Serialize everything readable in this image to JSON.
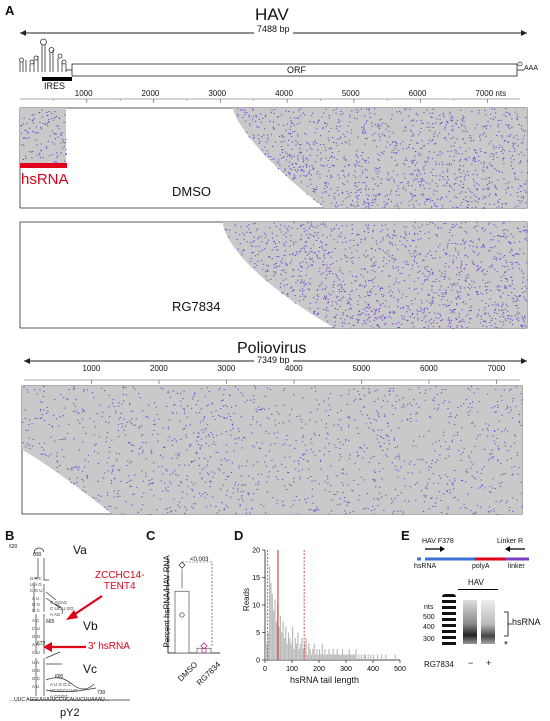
{
  "panel_a": {
    "letter": "A",
    "hav": {
      "title": "HAV",
      "length": "7488 bp",
      "ires": "IRES",
      "orf": "ORF",
      "polya": "AAA",
      "ticks": [
        "1000",
        "2000",
        "3000",
        "4000",
        "5000",
        "6000",
        "7000 nts"
      ],
      "hsrna_label": "hsRNA",
      "tracks": [
        {
          "label": "DMSO"
        },
        {
          "label": "RG7834"
        }
      ]
    },
    "polio": {
      "title": "Poliovirus",
      "length": "7349 bp",
      "ticks": [
        "1000",
        "2000",
        "3000",
        "4000",
        "5000",
        "6000",
        "7000"
      ]
    }
  },
  "panel_b": {
    "letter": "B",
    "domains": [
      "Va",
      "Vb",
      "Vc"
    ],
    "pY2": "pY2",
    "zcchc14_line1": "ZCCHC14-",
    "zcchc14_line2": "TENT4",
    "hsrna_3prime": "3' hsRNA",
    "nums": [
      "620",
      "630",
      "665",
      "672",
      "690",
      "730"
    ],
    "seq_bottom": "...UUC    AGGUUUUUCCUCAUUCUUAAAU..."
  },
  "panel_c": {
    "letter": "C",
    "ylabel": "Percent hsRNA/HAV RNA",
    "pvalue": "<0.003",
    "chart_data": {
      "type": "bar",
      "categories": [
        "DMSO",
        "RG7834"
      ],
      "values": [
        1.3,
        0.1
      ],
      "points": [
        [
          1.85,
          0.8
        ],
        [
          0.15,
          0.05
        ]
      ],
      "ylabel": "Percent hsRNA/HAV RNA"
    }
  },
  "panel_d": {
    "letter": "D",
    "xlabel": "hsRNA tail length",
    "ylabel": "Reads",
    "chart_data": {
      "type": "bar",
      "title": "",
      "xlabel": "hsRNA tail length",
      "ylabel": "Reads",
      "xlim": [
        0,
        500
      ],
      "ylim": [
        0,
        20
      ],
      "xticks": [
        0,
        100,
        200,
        300,
        400,
        500
      ],
      "yticks": [
        0,
        5,
        10,
        15,
        20
      ],
      "bin_width": 5,
      "values": [
        2,
        3,
        5,
        17,
        14,
        12,
        9,
        11,
        7,
        10,
        6,
        8,
        5,
        7,
        4,
        6,
        3,
        5,
        4,
        3,
        6,
        2,
        4,
        3,
        5,
        2,
        3,
        4,
        2,
        3,
        4,
        1,
        3,
        2,
        1,
        2,
        3,
        1,
        2,
        1,
        2,
        1,
        3,
        1,
        2,
        1,
        1,
        2,
        1,
        1,
        2,
        1,
        1,
        2,
        1,
        1,
        1,
        2,
        1,
        1,
        1,
        1,
        2,
        1,
        1,
        1,
        1,
        2,
        0,
        1,
        0,
        1,
        0,
        1,
        1,
        0,
        1,
        0,
        1,
        0,
        1,
        0,
        0,
        1,
        0,
        0,
        1,
        0,
        0,
        1,
        0,
        0,
        0,
        0,
        0,
        0,
        1,
        0,
        0,
        0
      ],
      "median_line": 48,
      "dashed_lines": [
        10,
        145
      ],
      "line_color": "#e02020"
    }
  },
  "panel_e": {
    "letter": "E",
    "primer_f": "HAV F378",
    "primer_r": "Linker R",
    "seg_labels": [
      "hsRNA",
      "polyA",
      "linker"
    ],
    "gel_title": "HAV",
    "nts": "nts",
    "markers": [
      "500",
      "400",
      "300"
    ],
    "hsrna_bracket": "hsRNA",
    "asterisk": "*",
    "treatment": "RG7834",
    "signs": [
      "−",
      "+"
    ]
  },
  "colors": {
    "read_gray": "#c9c9c9",
    "read_purple": "#6a3fd0",
    "hsrna_red": "#e0001a",
    "arrow_red": "#e0001a",
    "orf_blue": "#3d6fd6",
    "polya_purple": "#7a3fbf"
  }
}
